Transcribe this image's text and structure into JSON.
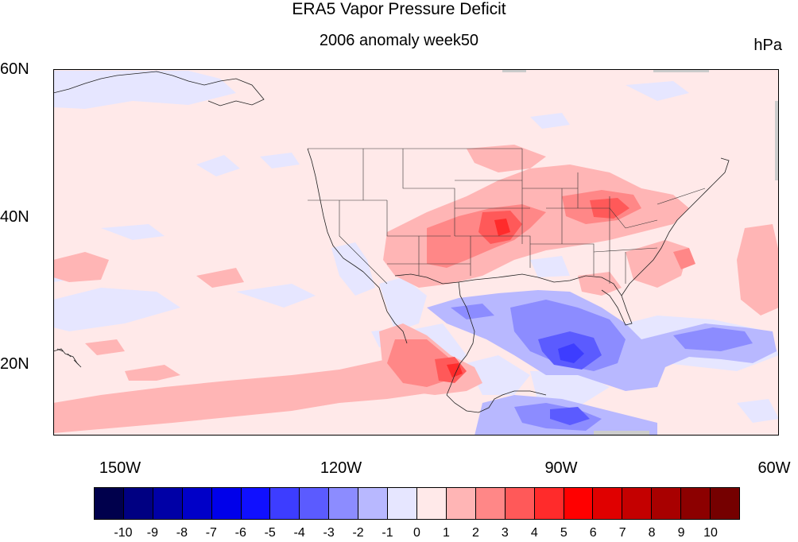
{
  "title": "ERA5 Vapor Pressure Deficit",
  "subtitle": "2006 anomaly week50",
  "units": "hPa",
  "lat_labels": [
    "60N",
    "40N",
    "20N"
  ],
  "lon_labels": [
    "150W",
    "120W",
    "90W",
    "60W"
  ],
  "colorbar": {
    "labels": [
      "-10",
      "-9",
      "-8",
      "-7",
      "-6",
      "-5",
      "-4",
      "-3",
      "-2",
      "-1",
      "0",
      "1",
      "2",
      "3",
      "4",
      "5",
      "6",
      "7",
      "8",
      "9",
      "10"
    ],
    "colors": [
      "#00004c",
      "#000082",
      "#0000a6",
      "#0000c8",
      "#0000ea",
      "#1010ff",
      "#3d3dff",
      "#5b5bff",
      "#8c8cff",
      "#b8b8ff",
      "#e6e6ff",
      "#ffe9e9",
      "#ffb5b5",
      "#ff8787",
      "#ff5959",
      "#ff2b2b",
      "#ff0000",
      "#e00000",
      "#c40000",
      "#a80000",
      "#8c0000",
      "#750000"
    ]
  },
  "map": {
    "lon_range": [
      "160W",
      "60W"
    ],
    "lat_range": [
      "10N",
      "60N"
    ],
    "background": "#ffe9e9"
  }
}
